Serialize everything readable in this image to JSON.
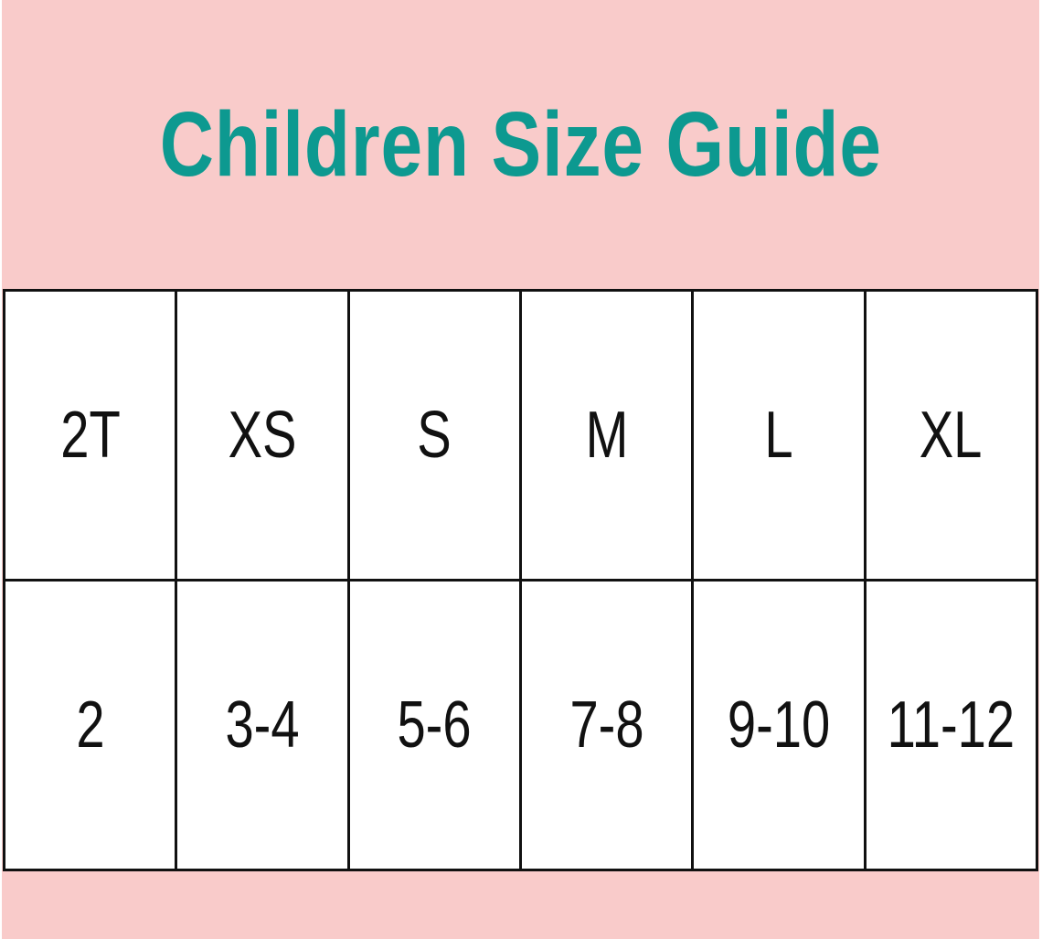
{
  "title": "Children Size Guide",
  "colors": {
    "background": "#f9cbca",
    "title": "#0d9990",
    "grid": "#111111"
  },
  "sizes": [
    "2T",
    "XS",
    "S",
    "M",
    "L",
    "XL"
  ],
  "ages": [
    "2",
    "3-4",
    "5-6",
    "7-8",
    "9-10",
    "11-12"
  ]
}
